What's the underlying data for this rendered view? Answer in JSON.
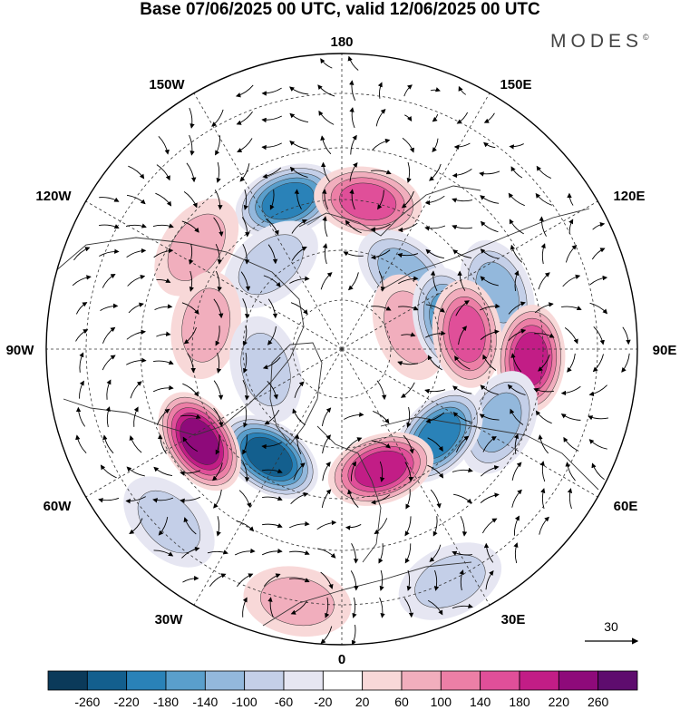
{
  "title": "Base 07/06/2025 00 UTC, valid 12/06/2025 00 UTC",
  "brand": "MODES",
  "brand_mark": "©",
  "longitude_labels": {
    "top": "180",
    "bottom": "0",
    "left": "90W",
    "right": "90E",
    "upper_left": "150W",
    "upper_right": "150E",
    "mid_upper_left": "120W",
    "mid_upper_right": "120E",
    "lower_left": "60W",
    "lower_right": "60E",
    "bottom_left": "30W",
    "bottom_right": "30E"
  },
  "vector_reference": {
    "label": "30"
  },
  "colorbar": {
    "colors": [
      "#0b3a5a",
      "#135f8e",
      "#2a82b8",
      "#5a9fcc",
      "#93b8dc",
      "#c4cfe8",
      "#e6e6f2",
      "#ffffff",
      "#f8d8d8",
      "#f1aebd",
      "#ec7fa6",
      "#e04f99",
      "#c21d86",
      "#8e0a7a",
      "#5e0c6e"
    ],
    "tick_labels": [
      "-260",
      "-220",
      "-180",
      "-140",
      "-100",
      "-60",
      "-20",
      "20",
      "60",
      "100",
      "140",
      "180",
      "220",
      "260"
    ]
  },
  "anomaly_centers": [
    {
      "lon": -160,
      "lat": 50,
      "value": -200
    },
    {
      "lon": 170,
      "lat": 52,
      "value": 160
    },
    {
      "lon": 140,
      "lat": 65,
      "value": -120
    },
    {
      "lon": -125,
      "lat": 45,
      "value": 80
    },
    {
      "lon": -140,
      "lat": 62,
      "value": -60
    },
    {
      "lon": -100,
      "lat": 55,
      "value": 60
    },
    {
      "lon": 110,
      "lat": 48,
      "value": -100
    },
    {
      "lon": 108,
      "lat": 72,
      "value": 60
    },
    {
      "lon": 105,
      "lat": 62,
      "value": -140
    },
    {
      "lon": 97,
      "lat": 58,
      "value": 160
    },
    {
      "lon": 87,
      "lat": 42,
      "value": 180
    },
    {
      "lon": 65,
      "lat": 46,
      "value": -100
    },
    {
      "lon": 48,
      "lat": 57,
      "value": -200
    },
    {
      "lon": 18,
      "lat": 58,
      "value": 200
    },
    {
      "lon": -34,
      "lat": 57,
      "value": -240
    },
    {
      "lon": -57,
      "lat": 47,
      "value": 240
    },
    {
      "lon": -75,
      "lat": 70,
      "value": -80
    },
    {
      "lon": -10,
      "lat": 25,
      "value": 80
    },
    {
      "lon": 25,
      "lat": 25,
      "value": -80
    },
    {
      "lon": -45,
      "lat": 28,
      "value": -60
    }
  ]
}
